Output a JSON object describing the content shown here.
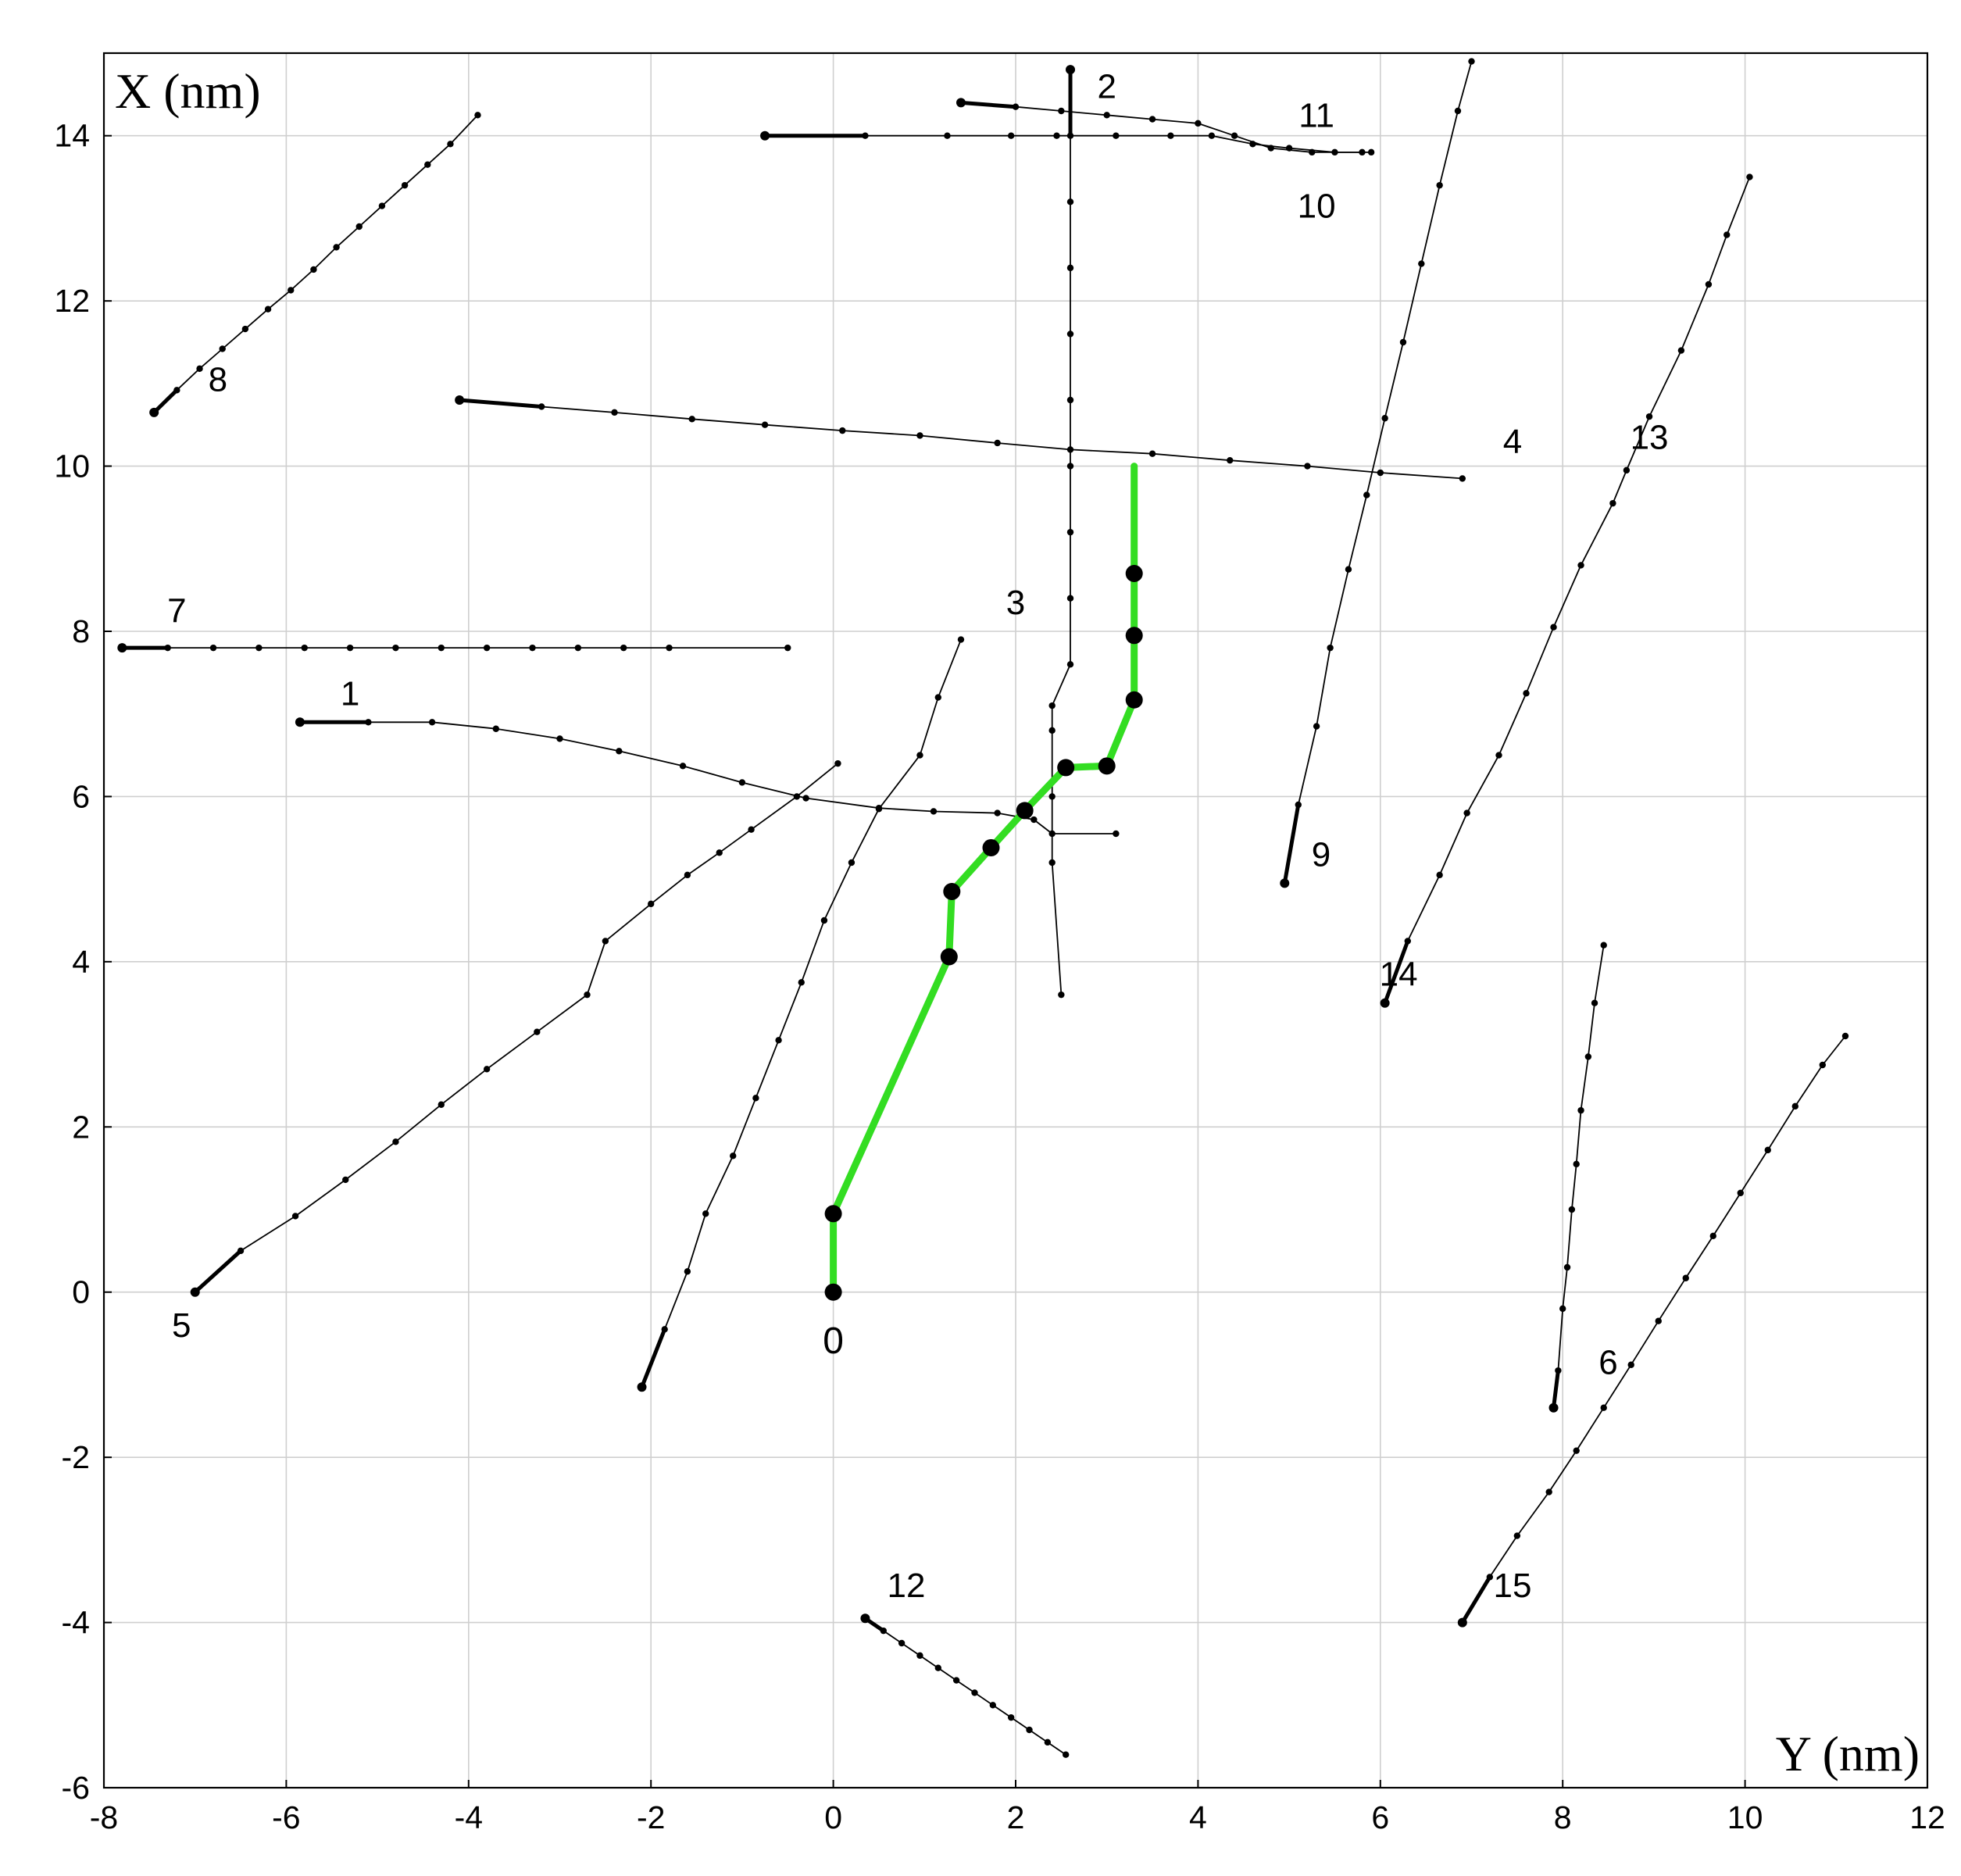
{
  "chart_data": {
    "type": "line",
    "title": "",
    "xlabel": "Y (nm)",
    "ylabel": "X (nm)",
    "xlim": [
      -8,
      12
    ],
    "ylim": [
      -6,
      15
    ],
    "xticks": [
      -8,
      -6,
      -4,
      -2,
      0,
      2,
      4,
      6,
      8,
      10,
      12
    ],
    "yticks": [
      -6,
      -4,
      -2,
      0,
      2,
      4,
      6,
      8,
      10,
      12,
      14
    ],
    "grid": true,
    "legend": "none",
    "colors": {
      "trajectory": "#000000",
      "highlight": "#33dd22",
      "grid": "#cfcfcf"
    },
    "series": [
      {
        "name": "0",
        "highlight": true,
        "label_at": [
          0,
          -0.6
        ],
        "points": [
          [
            0,
            0
          ],
          [
            0,
            0.95
          ],
          [
            1.27,
            4.06
          ],
          [
            1.3,
            4.85
          ],
          [
            1.73,
            5.38
          ],
          [
            2.1,
            5.83
          ],
          [
            2.55,
            6.35
          ],
          [
            3.0,
            6.37
          ],
          [
            3.3,
            7.17
          ],
          [
            3.3,
            7.95
          ],
          [
            3.3,
            8.7
          ],
          [
            3.3,
            10.0
          ]
        ]
      },
      {
        "name": "1",
        "label_at": [
          -5.3,
          7.25
        ],
        "points": [
          [
            -5.85,
            6.9
          ],
          [
            -5.1,
            6.9
          ],
          [
            -4.4,
            6.9
          ],
          [
            -3.7,
            6.82
          ],
          [
            -3.0,
            6.7
          ],
          [
            -2.35,
            6.55
          ],
          [
            -1.65,
            6.37
          ],
          [
            -1.0,
            6.17
          ],
          [
            -0.3,
            5.98
          ],
          [
            0.5,
            5.86
          ],
          [
            1.1,
            5.82
          ],
          [
            1.8,
            5.8
          ],
          [
            2.2,
            5.72
          ],
          [
            2.4,
            5.55
          ],
          [
            3.1,
            5.55
          ]
        ]
      },
      {
        "name": "2",
        "label_at": [
          3.0,
          14.6
        ],
        "points": [
          [
            2.6,
            14.8
          ],
          [
            2.6,
            14.0
          ],
          [
            2.6,
            13.2
          ],
          [
            2.6,
            12.4
          ],
          [
            2.6,
            11.6
          ],
          [
            2.6,
            10.8
          ],
          [
            2.6,
            10.0
          ],
          [
            2.6,
            9.2
          ],
          [
            2.6,
            8.4
          ],
          [
            2.6,
            7.6
          ],
          [
            2.4,
            7.1
          ],
          [
            2.4,
            6.8
          ],
          [
            2.4,
            6.0
          ],
          [
            2.4,
            5.2
          ],
          [
            2.5,
            3.6
          ]
        ]
      },
      {
        "name": "3",
        "label_at": [
          2.0,
          8.35
        ],
        "points": []
      },
      {
        "name": "4",
        "label_at": [
          7.45,
          10.3
        ],
        "points": [
          [
            -4.1,
            10.8
          ],
          [
            -3.2,
            10.72
          ],
          [
            -2.4,
            10.65
          ],
          [
            -1.55,
            10.57
          ],
          [
            -0.75,
            10.5
          ],
          [
            0.1,
            10.43
          ],
          [
            0.95,
            10.37
          ],
          [
            1.8,
            10.28
          ],
          [
            2.6,
            10.2
          ],
          [
            3.5,
            10.15
          ],
          [
            4.35,
            10.07
          ],
          [
            5.2,
            10.0
          ],
          [
            6.0,
            9.92
          ],
          [
            6.9,
            9.85
          ]
        ]
      },
      {
        "name": "5",
        "label_at": [
          -7.15,
          -0.4
        ],
        "points": [
          [
            -7.0,
            0.0
          ],
          [
            -6.5,
            0.5
          ],
          [
            -5.9,
            0.92
          ],
          [
            -5.35,
            1.36
          ],
          [
            -4.8,
            1.82
          ],
          [
            -4.3,
            2.27
          ],
          [
            -3.8,
            2.7
          ],
          [
            -3.25,
            3.15
          ],
          [
            -2.7,
            3.6
          ],
          [
            -2.5,
            4.25
          ],
          [
            -2.0,
            4.7
          ],
          [
            -1.6,
            5.05
          ],
          [
            -1.25,
            5.32
          ],
          [
            -0.9,
            5.6
          ],
          [
            -0.4,
            6.0
          ],
          [
            0.05,
            6.4
          ]
        ]
      },
      {
        "name": "6",
        "label_at": [
          8.5,
          -0.85
        ],
        "points": [
          [
            6.9,
            -4.0
          ],
          [
            7.2,
            -3.45
          ],
          [
            7.5,
            -2.95
          ],
          [
            7.85,
            -2.42
          ],
          [
            8.15,
            -1.92
          ],
          [
            8.45,
            -1.4
          ],
          [
            8.75,
            -0.88
          ],
          [
            9.05,
            -0.35
          ],
          [
            9.35,
            0.17
          ],
          [
            9.65,
            0.68
          ],
          [
            9.95,
            1.2
          ],
          [
            10.25,
            1.72
          ],
          [
            10.55,
            2.25
          ],
          [
            10.85,
            2.75
          ],
          [
            11.1,
            3.1
          ]
        ]
      },
      {
        "name": "7",
        "label_at": [
          -7.2,
          8.25
        ],
        "points": [
          [
            -7.8,
            7.8
          ],
          [
            -7.3,
            7.8
          ],
          [
            -6.8,
            7.8
          ],
          [
            -6.3,
            7.8
          ],
          [
            -5.8,
            7.8
          ],
          [
            -5.3,
            7.8
          ],
          [
            -4.8,
            7.8
          ],
          [
            -4.3,
            7.8
          ],
          [
            -3.8,
            7.8
          ],
          [
            -3.3,
            7.8
          ],
          [
            -2.8,
            7.8
          ],
          [
            -2.3,
            7.8
          ],
          [
            -1.8,
            7.8
          ],
          [
            -0.5,
            7.8
          ]
        ]
      },
      {
        "name": "8",
        "label_at": [
          -6.75,
          11.05
        ],
        "points": [
          [
            -7.45,
            10.65
          ],
          [
            -7.2,
            10.92
          ],
          [
            -6.95,
            11.18
          ],
          [
            -6.7,
            11.42
          ],
          [
            -6.45,
            11.66
          ],
          [
            -6.2,
            11.9
          ],
          [
            -5.95,
            12.13
          ],
          [
            -5.7,
            12.38
          ],
          [
            -5.45,
            12.65
          ],
          [
            -5.2,
            12.9
          ],
          [
            -4.95,
            13.15
          ],
          [
            -4.7,
            13.4
          ],
          [
            -4.45,
            13.65
          ],
          [
            -4.2,
            13.9
          ],
          [
            -3.9,
            14.25
          ]
        ]
      },
      {
        "name": "9",
        "label_at": [
          5.35,
          5.3
        ],
        "points": [
          [
            4.95,
            4.95
          ],
          [
            5.1,
            5.9
          ],
          [
            5.3,
            6.85
          ],
          [
            5.45,
            7.8
          ],
          [
            5.65,
            8.75
          ],
          [
            5.85,
            9.65
          ],
          [
            6.05,
            10.58
          ],
          [
            6.25,
            11.5
          ],
          [
            6.45,
            12.45
          ],
          [
            6.65,
            13.4
          ],
          [
            6.85,
            14.3
          ],
          [
            7.0,
            14.9
          ]
        ]
      },
      {
        "name": "10",
        "label_at": [
          5.3,
          13.15
        ],
        "points": [
          [
            -0.75,
            14.0
          ],
          [
            0.35,
            14.0
          ],
          [
            1.25,
            14.0
          ],
          [
            1.95,
            14.0
          ],
          [
            2.45,
            14.0
          ],
          [
            3.1,
            14.0
          ],
          [
            3.7,
            14.0
          ],
          [
            4.15,
            14.0
          ],
          [
            4.6,
            13.9
          ],
          [
            5.0,
            13.85
          ],
          [
            5.5,
            13.8
          ],
          [
            5.9,
            13.8
          ]
        ]
      },
      {
        "name": "11",
        "label_at": [
          5.3,
          14.25
        ],
        "points": [
          [
            1.4,
            14.4
          ],
          [
            2.0,
            14.35
          ],
          [
            2.5,
            14.3
          ],
          [
            3.0,
            14.25
          ],
          [
            3.5,
            14.2
          ],
          [
            4.0,
            14.15
          ],
          [
            4.4,
            14.0
          ],
          [
            4.8,
            13.85
          ],
          [
            5.25,
            13.8
          ],
          [
            5.8,
            13.8
          ]
        ]
      },
      {
        "name": "12",
        "label_at": [
          0.8,
          -3.55
        ],
        "points": [
          [
            0.35,
            -3.95
          ],
          [
            0.55,
            -4.1
          ],
          [
            0.75,
            -4.25
          ],
          [
            0.95,
            -4.4
          ],
          [
            1.15,
            -4.55
          ],
          [
            1.35,
            -4.7
          ],
          [
            1.55,
            -4.85
          ],
          [
            1.75,
            -5.0
          ],
          [
            1.95,
            -5.15
          ],
          [
            2.15,
            -5.3
          ],
          [
            2.35,
            -5.45
          ],
          [
            2.55,
            -5.6
          ]
        ]
      },
      {
        "name": "13",
        "label_at": [
          8.95,
          10.35
        ],
        "points": [
          [
            6.05,
            3.5
          ],
          [
            6.3,
            4.25
          ],
          [
            6.65,
            5.05
          ],
          [
            6.95,
            5.8
          ],
          [
            7.3,
            6.5
          ],
          [
            7.6,
            7.25
          ],
          [
            7.9,
            8.05
          ],
          [
            8.2,
            8.8
          ],
          [
            8.55,
            9.55
          ],
          [
            8.7,
            9.95
          ],
          [
            8.95,
            10.6
          ],
          [
            9.3,
            11.4
          ],
          [
            9.6,
            12.2
          ],
          [
            9.8,
            12.8
          ],
          [
            10.05,
            13.5
          ]
        ]
      },
      {
        "name": "14",
        "label_at": [
          6.2,
          3.85
        ],
        "points": []
      },
      {
        "name": "15",
        "label_at": [
          7.45,
          -3.55
        ],
        "points": []
      },
      {
        "name": "",
        "label_at": null,
        "points": [
          [
            7.9,
            -1.4
          ],
          [
            7.95,
            -0.95
          ],
          [
            8.0,
            -0.2
          ],
          [
            8.05,
            0.3
          ],
          [
            8.1,
            1.0
          ],
          [
            8.15,
            1.55
          ],
          [
            8.2,
            2.2
          ],
          [
            8.28,
            2.85
          ],
          [
            8.35,
            3.5
          ],
          [
            8.45,
            4.2
          ]
        ]
      },
      {
        "name": "",
        "label_at": null,
        "points": [
          [
            -2.1,
            -1.15
          ],
          [
            -1.85,
            -0.45
          ],
          [
            -1.6,
            0.25
          ],
          [
            -1.4,
            0.95
          ],
          [
            -1.1,
            1.65
          ],
          [
            -0.85,
            2.35
          ],
          [
            -0.6,
            3.05
          ],
          [
            -0.35,
            3.75
          ],
          [
            -0.1,
            4.5
          ],
          [
            0.2,
            5.2
          ],
          [
            0.5,
            5.85
          ],
          [
            0.95,
            6.5
          ],
          [
            1.15,
            7.2
          ],
          [
            1.4,
            7.9
          ]
        ]
      }
    ]
  }
}
